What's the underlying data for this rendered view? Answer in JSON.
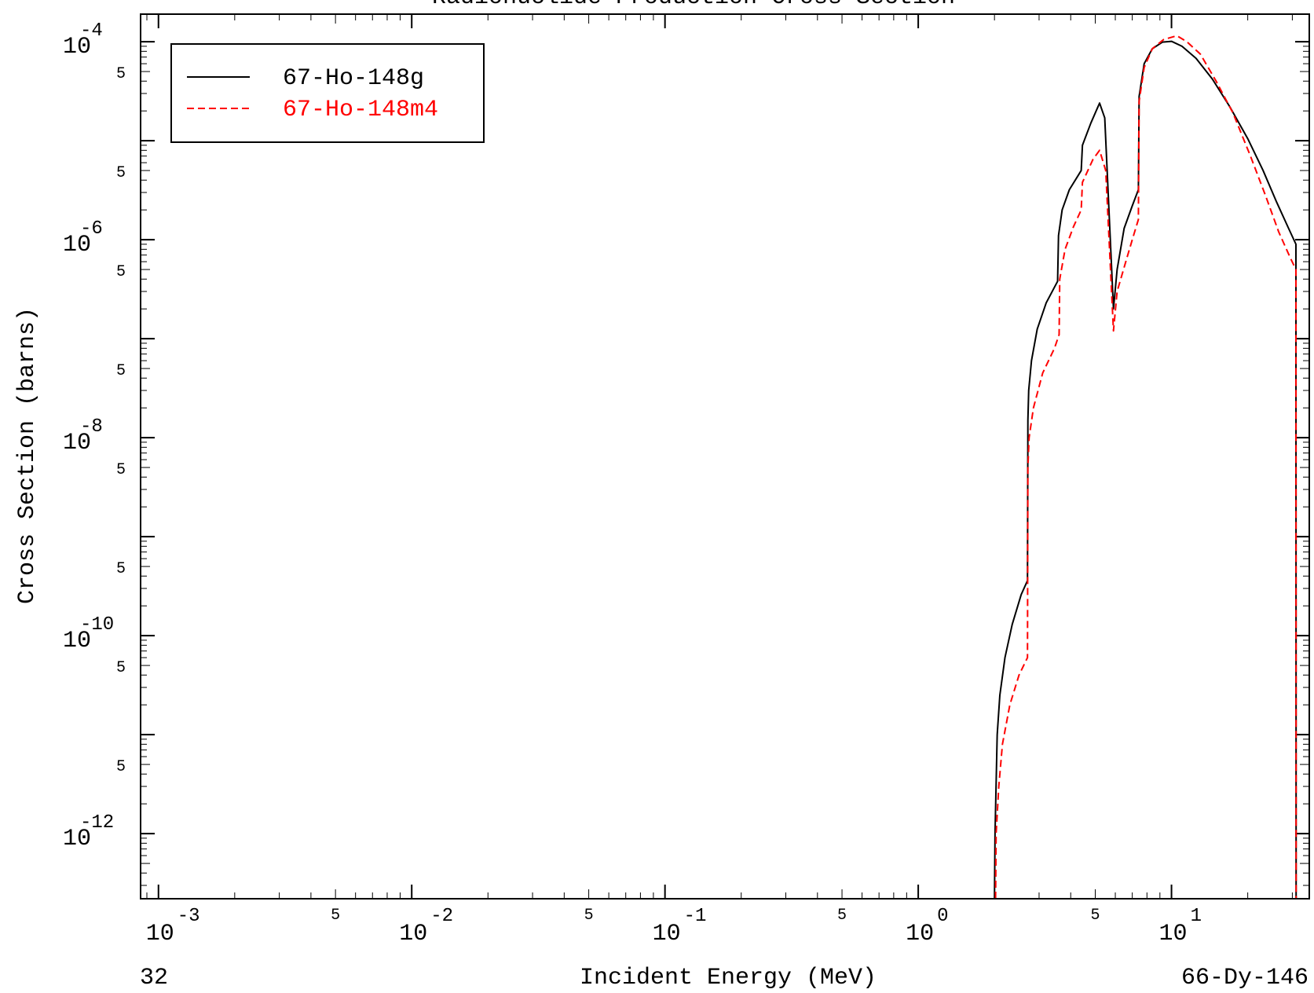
{
  "chart_data": {
    "type": "line",
    "title": "Radionuclide Production Cross Section",
    "xlabel": "Incident Energy (MeV)",
    "ylabel": "Cross Section (barns)",
    "x_scale": "log",
    "y_scale": "log",
    "xlim": [
      0.00085,
      35
    ],
    "ylim": [
      2.2e-13,
      0.00019
    ],
    "grid": false,
    "legend_position": "top-left",
    "x_ticks": [
      {
        "value": 0.001,
        "base": "10",
        "exp": "-3"
      },
      {
        "value": 0.01,
        "base": "10",
        "exp": "-2"
      },
      {
        "value": 0.1,
        "base": "10",
        "exp": "-1"
      },
      {
        "value": 1,
        "base": "10",
        "exp": "0"
      },
      {
        "value": 10,
        "base": "10",
        "exp": "1"
      }
    ],
    "x_minor_labels": [
      {
        "value": 0.005,
        "label": "5"
      },
      {
        "value": 0.05,
        "label": "5"
      },
      {
        "value": 0.5,
        "label": "5"
      },
      {
        "value": 5,
        "label": "5"
      }
    ],
    "y_ticks": [
      {
        "value": 0.0001,
        "base": "10",
        "exp": "-4"
      },
      {
        "value": 1e-06,
        "base": "10",
        "exp": "-6"
      },
      {
        "value": 1e-08,
        "base": "10",
        "exp": "-8"
      },
      {
        "value": 1e-10,
        "base": "10",
        "exp": "-10"
      },
      {
        "value": 1e-12,
        "base": "10",
        "exp": "-12"
      }
    ],
    "y_minor_labels": [
      {
        "value": 5e-05,
        "label": "5"
      },
      {
        "value": 5e-06,
        "label": "5"
      },
      {
        "value": 5e-07,
        "label": "5"
      },
      {
        "value": 5e-08,
        "label": "5"
      },
      {
        "value": 5e-09,
        "label": "5"
      },
      {
        "value": 5e-10,
        "label": "5"
      },
      {
        "value": 5e-11,
        "label": "5"
      },
      {
        "value": 5e-12,
        "label": "5"
      }
    ],
    "series": [
      {
        "name": "67-Ho-148g",
        "color": "#000000",
        "dash": "solid",
        "points": [
          [
            2.0,
            2.2e-13
          ],
          [
            2.01,
            1e-12
          ],
          [
            2.05,
            1e-11
          ],
          [
            2.1,
            2.5e-11
          ],
          [
            2.2,
            6e-11
          ],
          [
            2.35,
            1.3e-10
          ],
          [
            2.55,
            2.6e-10
          ],
          [
            2.7,
            3.6e-10
          ],
          [
            2.71,
            1.5e-08
          ],
          [
            2.73,
            3e-08
          ],
          [
            2.8,
            6e-08
          ],
          [
            2.95,
            1.25e-07
          ],
          [
            3.2,
            2.3e-07
          ],
          [
            3.55,
            3.8e-07
          ],
          [
            3.58,
            1.1e-06
          ],
          [
            3.7,
            2e-06
          ],
          [
            3.95,
            3.2e-06
          ],
          [
            4.4,
            5e-06
          ],
          [
            4.45,
            9e-06
          ],
          [
            4.8,
            1.5e-05
          ],
          [
            5.2,
            2.4e-05
          ],
          [
            5.45,
            1.7e-05
          ],
          [
            5.9,
            2e-07
          ],
          [
            6.1,
            5e-07
          ],
          [
            6.5,
            1.3e-06
          ],
          [
            7.0,
            2.2e-06
          ],
          [
            7.4,
            3.2e-06
          ],
          [
            7.45,
            2.8e-05
          ],
          [
            7.8,
            6e-05
          ],
          [
            8.4,
            8.5e-05
          ],
          [
            9.2,
            9.9e-05
          ],
          [
            10.0,
            0.000101
          ],
          [
            11.0,
            9e-05
          ],
          [
            12.5,
            6.8e-05
          ],
          [
            14.5,
            4.2e-05
          ],
          [
            17.0,
            2.2e-05
          ],
          [
            20.0,
            1.05e-05
          ],
          [
            23.0,
            5e-06
          ],
          [
            26.0,
            2.4e-06
          ],
          [
            29.0,
            1.3e-06
          ],
          [
            31.0,
            9e-07
          ],
          [
            31.05,
            2.2e-13
          ]
        ]
      },
      {
        "name": "67-Ho-148m4",
        "color": "#ff0000",
        "dash": "dashed",
        "points": [
          [
            2.02,
            2.2e-13
          ],
          [
            2.03,
            1e-12
          ],
          [
            2.08,
            3e-12
          ],
          [
            2.15,
            8e-12
          ],
          [
            2.3,
            2e-11
          ],
          [
            2.5,
            4e-11
          ],
          [
            2.7,
            6e-11
          ],
          [
            2.71,
            5e-09
          ],
          [
            2.74,
            1e-08
          ],
          [
            2.85,
            2e-08
          ],
          [
            3.1,
            4.5e-08
          ],
          [
            3.45,
            8e-08
          ],
          [
            3.6,
            1.1e-07
          ],
          [
            3.62,
            4e-07
          ],
          [
            3.8,
            8e-07
          ],
          [
            4.1,
            1.35e-06
          ],
          [
            4.4,
            2e-06
          ],
          [
            4.45,
            3.8e-06
          ],
          [
            4.9,
            6.5e-06
          ],
          [
            5.2,
            8e-06
          ],
          [
            5.5,
            5e-06
          ],
          [
            5.9,
            1.2e-07
          ],
          [
            6.1,
            3e-07
          ],
          [
            6.6,
            6e-07
          ],
          [
            7.0,
            1e-06
          ],
          [
            7.4,
            1.6e-06
          ],
          [
            7.45,
            2.5e-05
          ],
          [
            7.8,
            5.5e-05
          ],
          [
            8.4,
            8.5e-05
          ],
          [
            9.3,
            0.000105
          ],
          [
            10.5,
            0.000115
          ],
          [
            11.5,
            0.0001
          ],
          [
            13.0,
            7.5e-05
          ],
          [
            15.0,
            4e-05
          ],
          [
            17.5,
            1.9e-05
          ],
          [
            20.5,
            7e-06
          ],
          [
            23.5,
            2.8e-06
          ],
          [
            26.5,
            1.2e-06
          ],
          [
            29.5,
            6.5e-07
          ],
          [
            31.0,
            5e-07
          ],
          [
            31.05,
            2.2e-13
          ]
        ]
      }
    ],
    "footer_left": "32",
    "footer_right": "66-Dy-146"
  }
}
